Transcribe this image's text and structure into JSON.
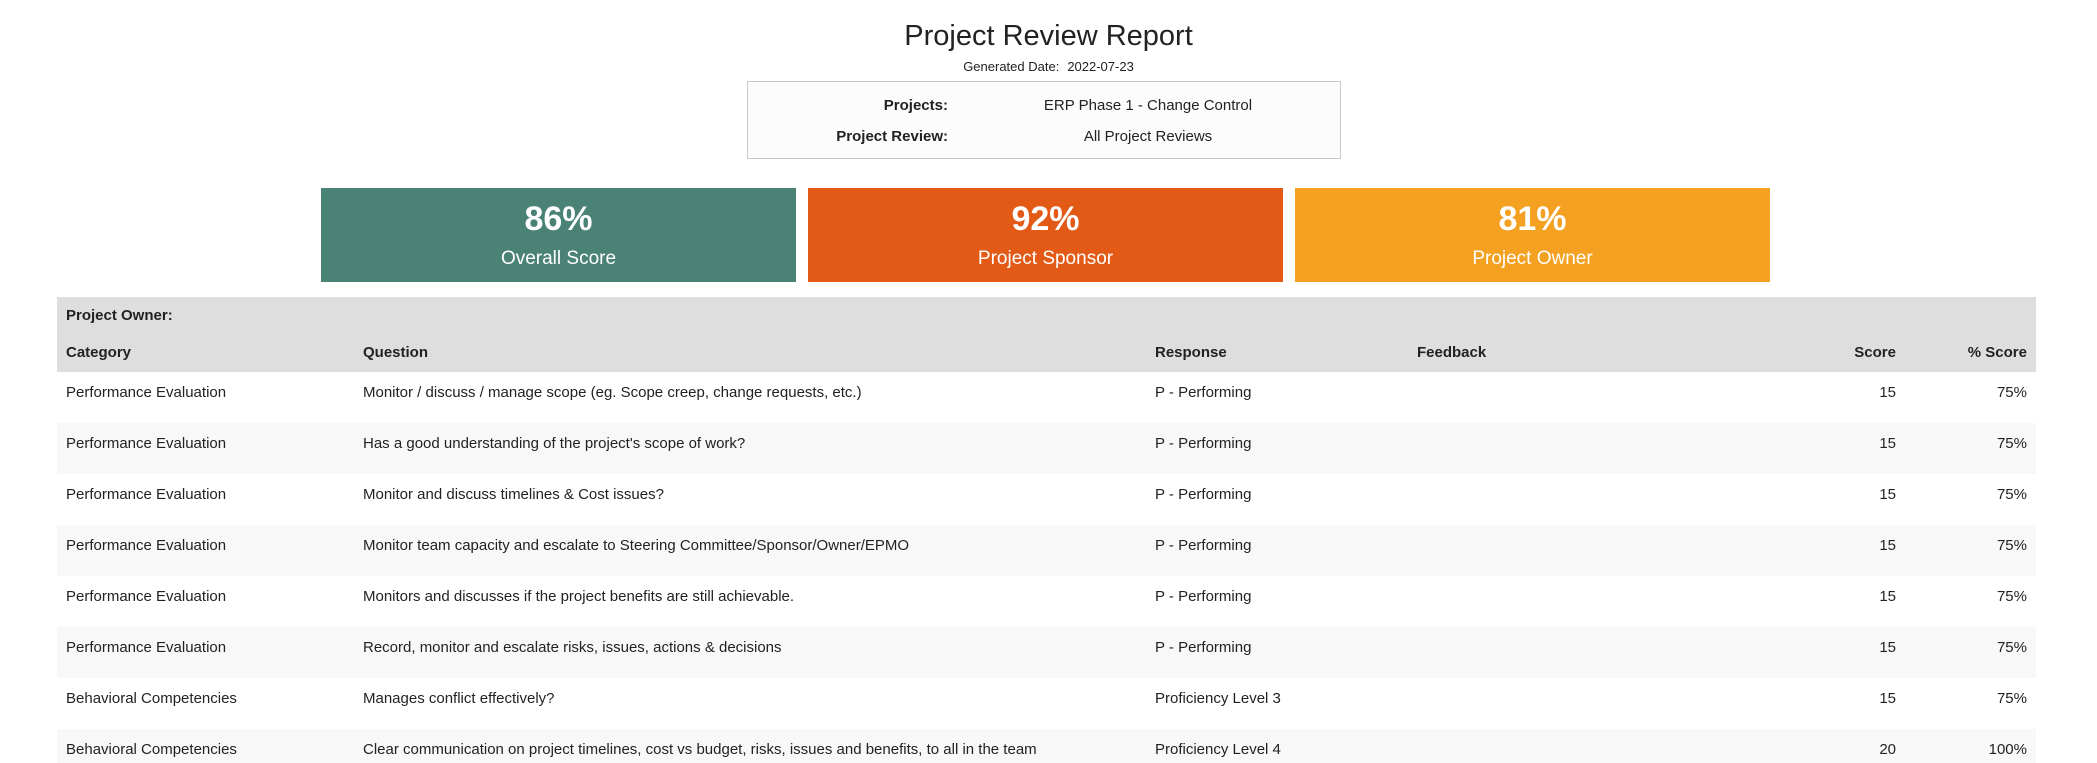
{
  "report": {
    "title": "Project Review Report",
    "generated_label": "Generated Date:",
    "generated_date": "2022-07-23"
  },
  "filters": {
    "projects_label": "Projects:",
    "projects_value": "ERP Phase 1 - Change Control",
    "review_label": "Project Review:",
    "review_value": "All Project Reviews"
  },
  "scores": {
    "overall": {
      "percent": "86%",
      "caption": "Overall Score",
      "color": "#4a8276"
    },
    "sponsor": {
      "percent": "92%",
      "caption": "Project Sponsor",
      "color": "#e35a16"
    },
    "owner": {
      "percent": "81%",
      "caption": "Project Owner",
      "color": "#f4a020"
    }
  },
  "table": {
    "section_title": "Project Owner:",
    "headers": {
      "category": "Category",
      "question": "Question",
      "response": "Response",
      "feedback": "Feedback",
      "score": "Score",
      "pct_score": "% Score"
    },
    "rows": [
      {
        "category": "Performance Evaluation",
        "question": "Monitor / discuss / manage scope (eg. Scope creep, change requests, etc.)",
        "response": "P - Performing",
        "feedback": "",
        "score": "15",
        "pct": "75%"
      },
      {
        "category": "Performance Evaluation",
        "question": "Has a good understanding of the project's scope of work?",
        "response": "P - Performing",
        "feedback": "",
        "score": "15",
        "pct": "75%"
      },
      {
        "category": "Performance Evaluation",
        "question": "Monitor and discuss timelines & Cost issues?",
        "response": "P - Performing",
        "feedback": "",
        "score": "15",
        "pct": "75%"
      },
      {
        "category": "Performance Evaluation",
        "question": "Monitor team capacity and escalate to Steering Committee/Sponsor/Owner/EPMO",
        "response": "P - Performing",
        "feedback": "",
        "score": "15",
        "pct": "75%"
      },
      {
        "category": "Performance Evaluation",
        "question": "Monitors and discusses if the project benefits are still achievable.",
        "response": "P - Performing",
        "feedback": "",
        "score": "15",
        "pct": "75%"
      },
      {
        "category": "Performance Evaluation",
        "question": "Record, monitor and escalate risks, issues, actions & decisions",
        "response": "P - Performing",
        "feedback": "",
        "score": "15",
        "pct": "75%"
      },
      {
        "category": "Behavioral Competencies",
        "question": "Manages conflict effectively?",
        "response": "Proficiency Level 3",
        "feedback": "",
        "score": "15",
        "pct": "75%"
      },
      {
        "category": "Behavioral Competencies",
        "question": "Clear communication on project timelines, cost vs budget, risks, issues and benefits, to all in the team",
        "response": "Proficiency Level 4",
        "feedback": "",
        "score": "20",
        "pct": "100%"
      }
    ]
  }
}
